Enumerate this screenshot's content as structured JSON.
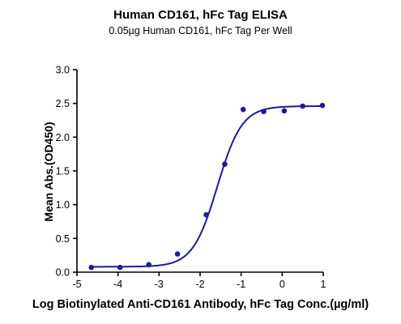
{
  "chart_data": {
    "type": "scatter",
    "title": "Human CD161, hFc Tag ELISA",
    "subtitle": "0.05µg Human CD161, hFc Tag Per Well",
    "xlabel": "Log Biotinylated Anti-CD161 Antibody, hFc Tag Conc.(µg/ml)",
    "ylabel": "Mean Abs.(OD450)",
    "xlim": [
      -5,
      1
    ],
    "ylim": [
      0,
      3
    ],
    "x_ticks": [
      "-5",
      "-4",
      "-3",
      "-2",
      "-1",
      "0",
      "1"
    ],
    "y_ticks": [
      "0.0",
      "0.5",
      "1.0",
      "1.5",
      "2.0",
      "2.5",
      "3.0"
    ],
    "series": [
      {
        "points": [
          {
            "x": -4.65,
            "y": 0.07
          },
          {
            "x": -3.95,
            "y": 0.07
          },
          {
            "x": -3.25,
            "y": 0.11
          },
          {
            "x": -2.55,
            "y": 0.27
          },
          {
            "x": -1.85,
            "y": 0.85
          },
          {
            "x": -1.4,
            "y": 1.6
          },
          {
            "x": -0.95,
            "y": 2.41
          },
          {
            "x": -0.45,
            "y": 2.38
          },
          {
            "x": 0.05,
            "y": 2.39
          },
          {
            "x": 0.5,
            "y": 2.46
          },
          {
            "x": 0.98,
            "y": 2.47
          }
        ],
        "fit": {
          "model": "4PL",
          "bottom": 0.08,
          "top": 2.46,
          "logEC50": -1.58,
          "hill": 1.45
        }
      }
    ],
    "color": "#1a1a9c",
    "grid": false,
    "legend": "none"
  }
}
